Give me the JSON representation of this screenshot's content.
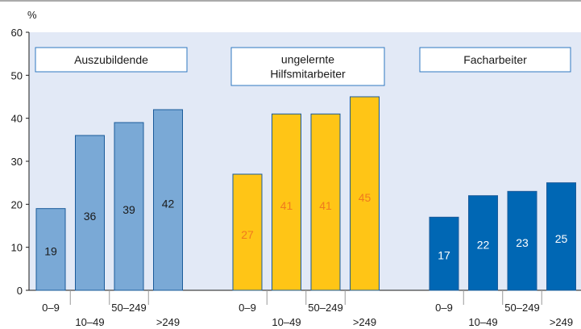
{
  "chart_data": {
    "type": "bar",
    "ylabel": "%",
    "ylim": [
      0,
      60
    ],
    "yticks": [
      "0",
      "10",
      "20",
      "30",
      "40",
      "50",
      "60"
    ],
    "categories": [
      "0–9",
      "10–49",
      "50–249",
      ">249"
    ],
    "grid": false,
    "groups": [
      {
        "name": "Auszubildende",
        "name_lines": [
          "Auszubildende"
        ],
        "values": [
          19,
          36,
          39,
          42
        ],
        "bar_color": "#7aa9d6",
        "label_color": "#1a1a1a"
      },
      {
        "name": "ungelernte Hilfsmitarbeiter",
        "name_lines": [
          "ungelernte",
          "Hilfsmitarbeiter"
        ],
        "values": [
          27,
          41,
          41,
          45
        ],
        "bar_color": "#ffc516",
        "label_color": "#f07a1e"
      },
      {
        "name": "Facharbeiter",
        "name_lines": [
          "Facharbeiter"
        ],
        "values": [
          17,
          22,
          23,
          25
        ],
        "bar_color": "#0067b4",
        "label_color": "#ffffff"
      }
    ],
    "colors": {
      "plot_background": "#e2e9f6",
      "axis": "#1a1a1a",
      "bar_stroke": "#1a5b9a",
      "legend_box_stroke": "#2f78c0"
    }
  }
}
